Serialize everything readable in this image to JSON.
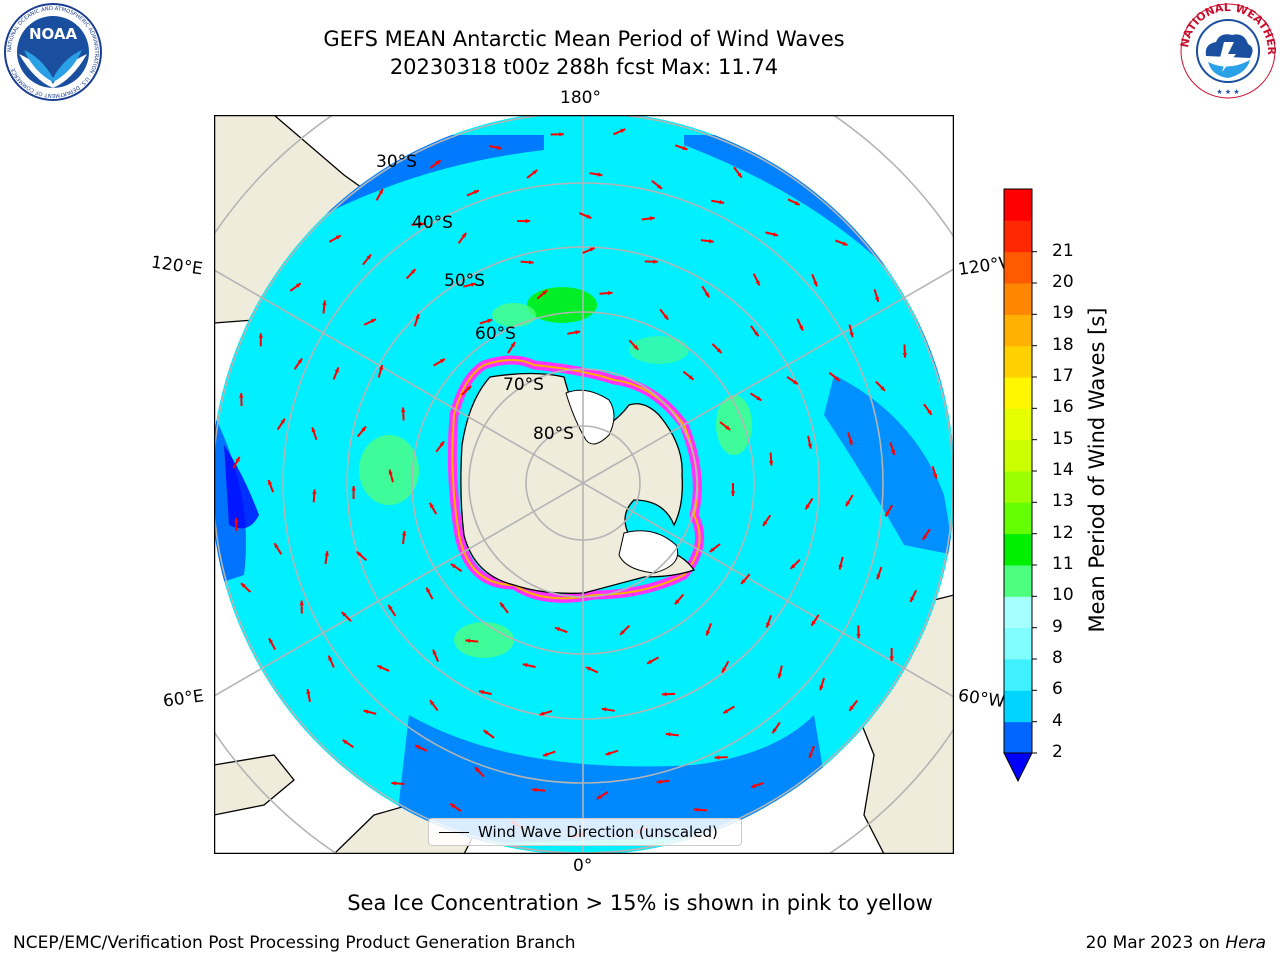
{
  "header": {
    "title_line1": "GEFS MEAN Antarctic Mean Period of Wind Waves",
    "title_line2": "20230318 t00z 288h fcst   Max: 11.74"
  },
  "logos": {
    "left": {
      "name": "noaa-logo",
      "text": "NOAA",
      "ring_text": "NATIONAL OCEANIC AND ATMOSPHERIC ADMINISTRATION · U.S. DEPARTMENT OF COMMERCE"
    },
    "right": {
      "name": "nws-logo",
      "ring_text": "NATIONAL WEATHER SERVICE"
    }
  },
  "map": {
    "projection": "south-polar-stereographic",
    "longitude_labels": {
      "top": "180°",
      "bottom": "0°",
      "left_upper": "120°E",
      "left_lower": "60°E",
      "right_upper": "120°W",
      "right_lower": "60°W"
    },
    "latitude_labels": [
      "30°S",
      "40°S",
      "50°S",
      "60°S",
      "70°S",
      "80°S"
    ],
    "land_color": "#efecdc",
    "grid_color": "#b4b4b4",
    "arrow_color": "#ff0000"
  },
  "legend": {
    "label": "Wind Wave Direction (unscaled)"
  },
  "colorbar": {
    "label": "Mean Period of Wind Waves [s]",
    "ticks": [
      "2",
      "4",
      "6",
      "8",
      "9",
      "10",
      "11",
      "12",
      "13",
      "14",
      "15",
      "16",
      "17",
      "18",
      "19",
      "20",
      "21"
    ],
    "colors": [
      "#0066ff",
      "#00d4ff",
      "#3ff0ff",
      "#7ffdff",
      "#a5ffff",
      "#4eff7f",
      "#00ef00",
      "#64ff00",
      "#9bff00",
      "#ccff00",
      "#e6ff00",
      "#fff600",
      "#ffd100",
      "#ffb000",
      "#ff8600",
      "#ff5a00",
      "#ff2800",
      "#ff0000"
    ],
    "under_color": "#0000ff"
  },
  "notes": {
    "sea_ice": "Sea Ice Concentration > 15% is shown in pink to yellow",
    "footer_left": "NCEP/EMC/Verification Post Processing Product Generation Branch",
    "footer_date": "20 Mar 2023 on",
    "footer_machine": "Hera"
  }
}
